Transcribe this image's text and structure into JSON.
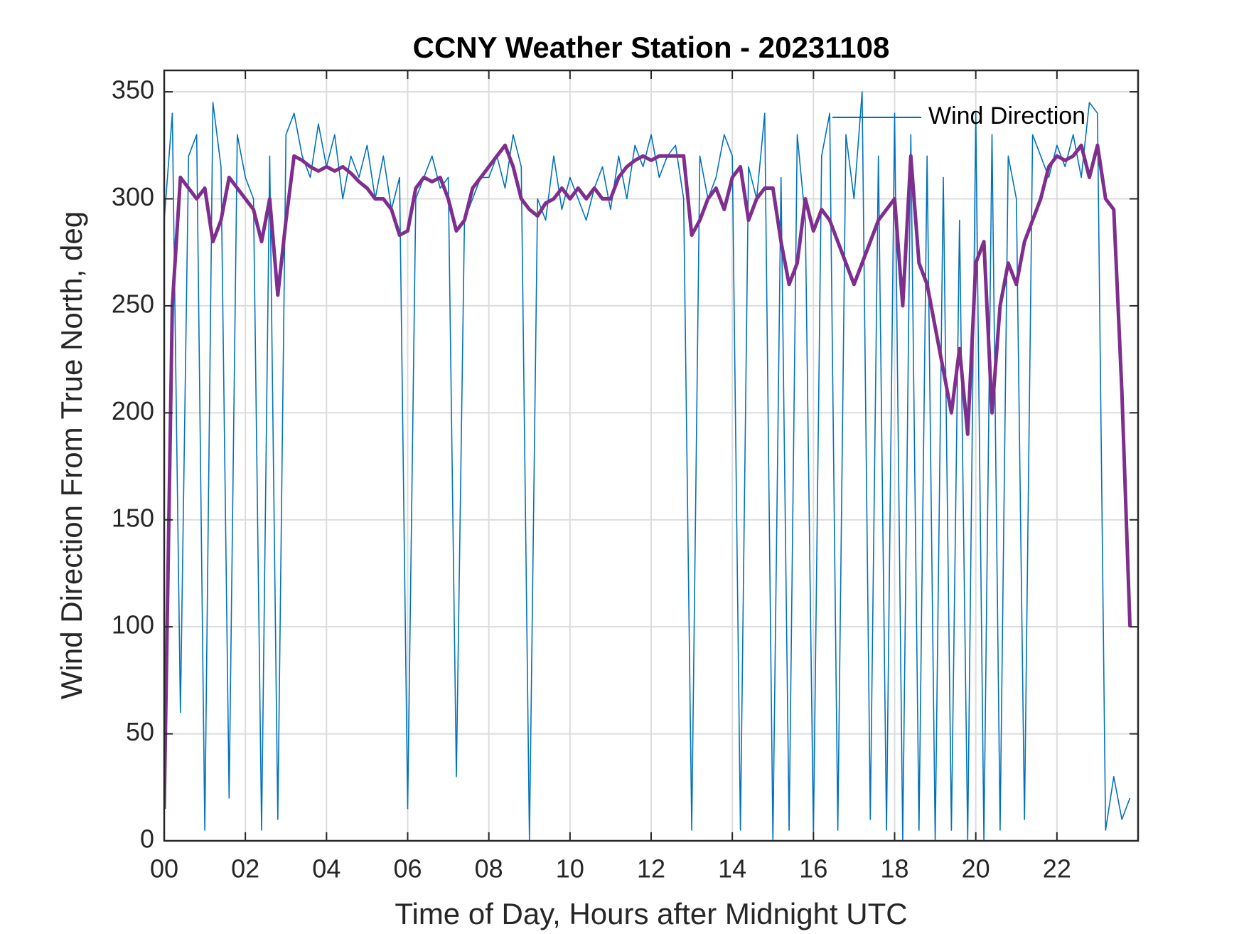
{
  "chart_data": {
    "type": "line",
    "title": "CCNY Weather Station - 20231108",
    "xlabel": "Time of Day, Hours after Midnight UTC",
    "ylabel": "Wind Direction From True North, deg",
    "x": [
      0,
      0.2,
      0.4,
      0.6,
      0.8,
      1,
      1.2,
      1.4,
      1.6,
      1.8,
      2,
      2.2,
      2.4,
      2.6,
      2.8,
      3,
      3.2,
      3.4,
      3.6,
      3.8,
      4,
      4.2,
      4.4,
      4.6,
      4.8,
      5,
      5.2,
      5.4,
      5.6,
      5.8,
      6,
      6.2,
      6.4,
      6.6,
      6.8,
      7,
      7.2,
      7.4,
      7.6,
      7.8,
      8,
      8.2,
      8.4,
      8.6,
      8.8,
      9,
      9.2,
      9.4,
      9.6,
      9.8,
      10,
      10.2,
      10.4,
      10.6,
      10.8,
      11,
      11.2,
      11.4,
      11.6,
      11.8,
      12,
      12.2,
      12.4,
      12.6,
      12.8,
      13,
      13.2,
      13.4,
      13.6,
      13.8,
      14,
      14.2,
      14.4,
      14.6,
      14.8,
      15,
      15.2,
      15.4,
      15.6,
      15.8,
      16,
      16.2,
      16.4,
      16.6,
      16.8,
      17,
      17.2,
      17.4,
      17.6,
      17.8,
      18,
      18.2,
      18.4,
      18.6,
      18.8,
      19,
      19.2,
      19.4,
      19.6,
      19.8,
      20,
      20.2,
      20.4,
      20.6,
      20.8,
      21,
      21.2,
      21.4,
      21.6,
      21.8,
      22,
      22.2,
      22.4,
      22.6,
      22.8,
      23,
      23.2,
      23.4,
      23.6,
      23.8
    ],
    "series": [
      {
        "name": "Wind Direction",
        "color": "#0072bd",
        "values": [
          290,
          340,
          60,
          320,
          330,
          5,
          345,
          315,
          20,
          330,
          310,
          300,
          5,
          320,
          10,
          330,
          340,
          320,
          310,
          335,
          315,
          330,
          300,
          320,
          310,
          325,
          300,
          320,
          295,
          310,
          15,
          300,
          310,
          320,
          305,
          310,
          30,
          290,
          300,
          310,
          310,
          320,
          305,
          330,
          315,
          0,
          300,
          290,
          320,
          295,
          310,
          300,
          290,
          305,
          315,
          295,
          320,
          300,
          325,
          315,
          330,
          310,
          320,
          325,
          300,
          5,
          320,
          300,
          310,
          330,
          320,
          5,
          315,
          300,
          340,
          0,
          310,
          5,
          330,
          290,
          3,
          320,
          340,
          5,
          330,
          300,
          350,
          10,
          320,
          5,
          340,
          0,
          330,
          5,
          320,
          0,
          310,
          5,
          290,
          0,
          340,
          0,
          330,
          5,
          320,
          300,
          10,
          330,
          320,
          310,
          325,
          315,
          330,
          310,
          345,
          340,
          5,
          30,
          10,
          20
        ]
      },
      {
        "color": "#7e2f8e",
        "values": [
          15,
          250,
          310,
          305,
          300,
          305,
          280,
          290,
          310,
          305,
          300,
          295,
          280,
          300,
          255,
          290,
          320,
          318,
          315,
          313,
          315,
          313,
          315,
          312,
          308,
          305,
          300,
          300,
          295,
          283,
          285,
          305,
          310,
          308,
          310,
          300,
          285,
          290,
          305,
          310,
          315,
          320,
          325,
          315,
          300,
          295,
          292,
          298,
          300,
          305,
          300,
          305,
          300,
          305,
          300,
          300,
          310,
          315,
          318,
          320,
          318,
          320,
          320,
          320,
          320,
          283,
          290,
          300,
          305,
          295,
          310,
          315,
          290,
          300,
          305,
          305,
          280,
          260,
          270,
          300,
          285,
          295,
          290,
          280,
          270,
          260,
          270,
          280,
          290,
          295,
          300,
          250,
          320,
          270,
          260,
          240,
          220,
          200,
          230,
          190,
          270,
          280,
          200,
          250,
          270,
          260,
          280,
          290,
          300,
          315,
          320,
          318,
          320,
          325,
          310,
          325,
          300,
          295,
          210,
          100
        ]
      }
    ],
    "xlim": [
      0,
      24
    ],
    "xticks": [
      {
        "value": 0,
        "label": "00"
      },
      {
        "value": 2,
        "label": "02"
      },
      {
        "value": 4,
        "label": "04"
      },
      {
        "value": 6,
        "label": "06"
      },
      {
        "value": 8,
        "label": "08"
      },
      {
        "value": 10,
        "label": "10"
      },
      {
        "value": 12,
        "label": "12"
      },
      {
        "value": 14,
        "label": "14"
      },
      {
        "value": 16,
        "label": "16"
      },
      {
        "value": 18,
        "label": "18"
      },
      {
        "value": 20,
        "label": "20"
      },
      {
        "value": 22,
        "label": "22"
      }
    ],
    "ylim": [
      0,
      360
    ],
    "yticks": [
      0,
      50,
      100,
      150,
      200,
      250,
      300,
      350
    ],
    "grid": true,
    "legend": "northeast"
  }
}
